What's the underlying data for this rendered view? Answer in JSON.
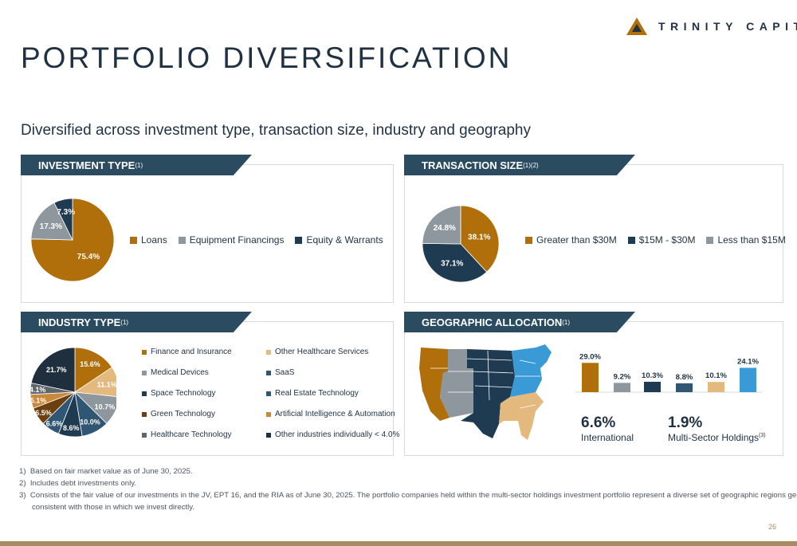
{
  "brand": {
    "name": "TRINITY CAPITAL",
    "accent": "#b06f0a",
    "navy": "#1f3142"
  },
  "page": {
    "title": "PORTFOLIO DIVERSIFICATION",
    "subtitle": "Diversified across investment type, transaction size, industry and geography",
    "page_number": "26"
  },
  "panels": {
    "investment": {
      "label": "INVESTMENT TYPE",
      "sup": "(1)"
    },
    "transaction": {
      "label": "TRANSACTION SIZE",
      "sup": "(1)(2)"
    },
    "industry": {
      "label": "INDUSTRY TYPE",
      "sup": "(1)"
    },
    "geographic": {
      "label": "GEOGRAPHIC ALLOCATION",
      "sup": "(1)"
    }
  },
  "chart_data": [
    {
      "id": "investment-type",
      "type": "pie",
      "labels": [
        "Loans",
        "Equipment Financings",
        "Equity & Warrants"
      ],
      "values": [
        75.4,
        17.3,
        7.3
      ],
      "value_labels": [
        "75.4%",
        "17.3%",
        "7.3%"
      ],
      "colors": [
        "#b06f0a",
        "#8e979e",
        "#1f3b52"
      ],
      "legend": "right"
    },
    {
      "id": "transaction-size",
      "type": "pie",
      "labels": [
        "Greater than $30M",
        "$15M - $30M",
        "Less than $15M"
      ],
      "values": [
        38.1,
        37.1,
        24.8
      ],
      "value_labels": [
        "38.1%",
        "37.1%",
        "24.8%"
      ],
      "colors": [
        "#b06f0a",
        "#1f3b52",
        "#8e979e"
      ],
      "legend": "right"
    },
    {
      "id": "industry-type",
      "type": "pie",
      "labels": [
        "Finance and Insurance",
        "Other Healthcare Services",
        "Medical Devices",
        "SaaS",
        "Space Technology",
        "Real Estate Technology",
        "Green Technology",
        "Artificial Intelligence & Automation",
        "Healthcare Technology",
        "Other industries individually < 4.0%"
      ],
      "values": [
        15.6,
        11.1,
        10.7,
        10.0,
        8.6,
        6.6,
        6.5,
        5.1,
        4.1,
        21.7
      ],
      "value_labels": [
        "15.6%",
        "11.1%",
        "10.7%",
        "10.0%",
        "8.6%",
        "6.6%",
        "6.5%",
        "5.1%",
        "4.1%",
        "21.7%"
      ],
      "colors": [
        "#b06f0a",
        "#e3b97e",
        "#8e979e",
        "#2f5773",
        "#1f3b52",
        "#2f5773",
        "#6b3f0f",
        "#c9893b",
        "#5e656b",
        "#1f2f3e"
      ],
      "legend": "right"
    },
    {
      "id": "geographic-allocation",
      "type": "bar",
      "values": [
        29.0,
        9.2,
        10.3,
        8.8,
        10.1,
        24.1
      ],
      "value_labels": [
        "29.0%",
        "9.2%",
        "10.3%",
        "8.8%",
        "10.1%",
        "24.1%"
      ],
      "colors": [
        "#b06f0a",
        "#8e979e",
        "#1f3b52",
        "#2f5773",
        "#e3b97e",
        "#3a9ad6"
      ],
      "ylim": [
        0,
        30
      ]
    }
  ],
  "geo_extra": {
    "international": {
      "value": "6.6%",
      "label": "International"
    },
    "multisector": {
      "value": "1.9%",
      "label": "Multi-Sector Holdings",
      "sup": "(3)"
    }
  },
  "footnotes": [
    {
      "num": "1)",
      "text": "Based on fair market value as of June 30, 2025."
    },
    {
      "num": "2)",
      "text": "Includes debt investments only."
    },
    {
      "num": "3)",
      "text": "Consists of the fair value of our investments in the JV, EPT 16, and the RIA as of June 30, 2025. The portfolio companies held within the multi-sector holdings investment portfolio represent a diverse set of geographic regions generally"
    },
    {
      "num": "",
      "text": "consistent with those in which we invest directly."
    }
  ]
}
